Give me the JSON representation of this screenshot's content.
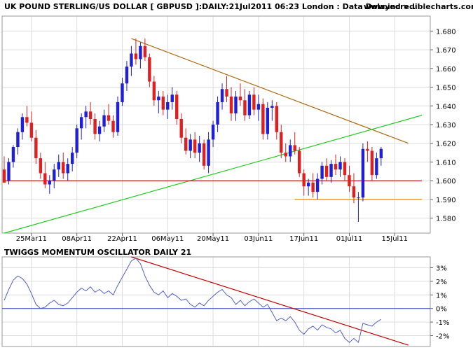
{
  "header": {
    "title": "UK POUND STERLING/US DOLLAR [ GBPUSD ]:DAILY:21Jul2011 06:23 London : Data Delayed >..",
    "site": "www.incrediblecharts.com"
  },
  "colors": {
    "up": "#1f1fd6",
    "down": "#e02020",
    "grid": "#dddddd",
    "frame": "#999999",
    "trend_brown": "#b06a10",
    "trend_green": "#22cc22",
    "support_red": "#d00000",
    "support_orange": "#e08a00",
    "oscillator": "#4f5fd0",
    "osc_trend": "#c00000",
    "zero_line": "#3040c0"
  },
  "chart_data": [
    {
      "type": "candlestick",
      "title": "UK POUND STERLING/US DOLLAR [ GBPUSD ]:DAILY:21Jul2011 06:23 London : Data Delayed >..",
      "ylim": [
        1.572,
        1.688
      ],
      "yticks": [
        "1.580",
        "1.590",
        "1.600",
        "1.610",
        "1.620",
        "1.630",
        "1.640",
        "1.650",
        "1.660",
        "1.670",
        "1.680"
      ],
      "xticks": [
        "25Mar11",
        "08Apr11",
        "22Apr11",
        "06May11",
        "20May11",
        "03Jun11",
        "17Jun11",
        "01Jul11",
        "15Jul11"
      ],
      "xtick_bar_index": [
        6,
        16,
        26,
        36,
        46,
        56,
        66,
        76,
        86
      ],
      "candles": [
        [
          1.606,
          1.613,
          1.6,
          1.599
        ],
        [
          1.6,
          1.612,
          1.598,
          1.61
        ],
        [
          1.61,
          1.619,
          1.607,
          1.618
        ],
        [
          1.618,
          1.628,
          1.614,
          1.626
        ],
        [
          1.626,
          1.636,
          1.622,
          1.634
        ],
        [
          1.634,
          1.64,
          1.629,
          1.631
        ],
        [
          1.631,
          1.637,
          1.621,
          1.623
        ],
        [
          1.623,
          1.627,
          1.609,
          1.612
        ],
        [
          1.612,
          1.615,
          1.601,
          1.604
        ],
        [
          1.604,
          1.61,
          1.596,
          1.598
        ],
        [
          1.598,
          1.603,
          1.593,
          1.6
        ],
        [
          1.6,
          1.609,
          1.596,
          1.606
        ],
        [
          1.606,
          1.614,
          1.602,
          1.61
        ],
        [
          1.61,
          1.615,
          1.601,
          1.604
        ],
        [
          1.604,
          1.612,
          1.6,
          1.609
        ],
        [
          1.609,
          1.618,
          1.605,
          1.615
        ],
        [
          1.615,
          1.63,
          1.612,
          1.628
        ],
        [
          1.628,
          1.636,
          1.622,
          1.634
        ],
        [
          1.634,
          1.64,
          1.628,
          1.637
        ],
        [
          1.637,
          1.642,
          1.63,
          1.633
        ],
        [
          1.633,
          1.636,
          1.622,
          1.625
        ],
        [
          1.625,
          1.632,
          1.621,
          1.629
        ],
        [
          1.629,
          1.638,
          1.626,
          1.635
        ],
        [
          1.635,
          1.641,
          1.63,
          1.632
        ],
        [
          1.632,
          1.635,
          1.623,
          1.626
        ],
        [
          1.626,
          1.645,
          1.624,
          1.642
        ],
        [
          1.642,
          1.655,
          1.64,
          1.652
        ],
        [
          1.652,
          1.664,
          1.648,
          1.661
        ],
        [
          1.661,
          1.672,
          1.656,
          1.668
        ],
        [
          1.668,
          1.676,
          1.662,
          1.665
        ],
        [
          1.665,
          1.674,
          1.66,
          1.672
        ],
        [
          1.672,
          1.676,
          1.664,
          1.666
        ],
        [
          1.666,
          1.668,
          1.65,
          1.653
        ],
        [
          1.653,
          1.656,
          1.64,
          1.643
        ],
        [
          1.643,
          1.648,
          1.636,
          1.645
        ],
        [
          1.645,
          1.648,
          1.635,
          1.638
        ],
        [
          1.638,
          1.646,
          1.633,
          1.642
        ],
        [
          1.642,
          1.65,
          1.638,
          1.646
        ],
        [
          1.646,
          1.648,
          1.63,
          1.633
        ],
        [
          1.633,
          1.636,
          1.62,
          1.623
        ],
        [
          1.623,
          1.628,
          1.614,
          1.616
        ],
        [
          1.616,
          1.625,
          1.612,
          1.622
        ],
        [
          1.622,
          1.626,
          1.612,
          1.615
        ],
        [
          1.615,
          1.624,
          1.61,
          1.62
        ],
        [
          1.62,
          1.622,
          1.606,
          1.608
        ],
        [
          1.608,
          1.626,
          1.604,
          1.622
        ],
        [
          1.622,
          1.632,
          1.618,
          1.63
        ],
        [
          1.63,
          1.645,
          1.626,
          1.642
        ],
        [
          1.642,
          1.652,
          1.638,
          1.649
        ],
        [
          1.649,
          1.656,
          1.642,
          1.645
        ],
        [
          1.645,
          1.65,
          1.632,
          1.636
        ],
        [
          1.636,
          1.648,
          1.632,
          1.645
        ],
        [
          1.645,
          1.652,
          1.64,
          1.643
        ],
        [
          1.643,
          1.649,
          1.632,
          1.635
        ],
        [
          1.635,
          1.648,
          1.633,
          1.646
        ],
        [
          1.646,
          1.65,
          1.635,
          1.638
        ],
        [
          1.638,
          1.646,
          1.632,
          1.641
        ],
        [
          1.641,
          1.644,
          1.622,
          1.625
        ],
        [
          1.625,
          1.642,
          1.622,
          1.639
        ],
        [
          1.639,
          1.643,
          1.632,
          1.64
        ],
        [
          1.64,
          1.642,
          1.622,
          1.626
        ],
        [
          1.626,
          1.63,
          1.612,
          1.615
        ],
        [
          1.615,
          1.62,
          1.61,
          1.613
        ],
        [
          1.613,
          1.622,
          1.61,
          1.619
        ],
        [
          1.619,
          1.626,
          1.614,
          1.616
        ],
        [
          1.616,
          1.618,
          1.602,
          1.604
        ],
        [
          1.604,
          1.606,
          1.592,
          1.597
        ],
        [
          1.597,
          1.601,
          1.592,
          1.599
        ],
        [
          1.599,
          1.604,
          1.591,
          1.594
        ],
        [
          1.594,
          1.604,
          1.59,
          1.601
        ],
        [
          1.601,
          1.61,
          1.598,
          1.608
        ],
        [
          1.608,
          1.612,
          1.6,
          1.602
        ],
        [
          1.602,
          1.611,
          1.599,
          1.609
        ],
        [
          1.609,
          1.614,
          1.603,
          1.606
        ],
        [
          1.606,
          1.613,
          1.602,
          1.61
        ],
        [
          1.61,
          1.612,
          1.6,
          1.603
        ],
        [
          1.603,
          1.608,
          1.594,
          1.597
        ],
        [
          1.597,
          1.604,
          1.588,
          1.591
        ],
        [
          1.591,
          1.594,
          1.578,
          1.591
        ],
        [
          1.591,
          1.62,
          1.589,
          1.617
        ],
        [
          1.617,
          1.621,
          1.61,
          1.616
        ],
        [
          1.616,
          1.618,
          1.6,
          1.603
        ],
        [
          1.603,
          1.615,
          1.601,
          1.612
        ],
        [
          1.612,
          1.618,
          1.608,
          1.617
        ]
      ],
      "lines": [
        {
          "name": "",
          "color": "brown",
          "points": [
            [
              28,
              1.676
            ],
            [
              89,
              1.62
            ]
          ]
        },
        {
          "name": "",
          "color": "green",
          "points": [
            [
              0,
              1.572
            ],
            [
              92,
              1.635
            ]
          ]
        },
        {
          "name": "",
          "color": "red",
          "points": [
            [
              0,
              1.6
            ],
            [
              92,
              1.6
            ]
          ]
        },
        {
          "name": "",
          "color": "orange",
          "points": [
            [
              64,
              1.59
            ],
            [
              92,
              1.59
            ]
          ]
        }
      ]
    },
    {
      "type": "line",
      "title": "TWIGGS MOMENTUM OSCILLATOR DAILY 21",
      "ylim": [
        -2.8,
        3.8
      ],
      "yticks": [
        "3%",
        "2%",
        "1%",
        "0%",
        "-1%",
        "-2%"
      ],
      "ytick_values": [
        3,
        2,
        1,
        0,
        -1,
        -2
      ],
      "series": [
        {
          "name": "",
          "values": [
            0.6,
            1.4,
            2.1,
            2.4,
            2.2,
            1.8,
            1.1,
            0.3,
            0.0,
            0.1,
            0.4,
            0.6,
            0.3,
            0.2,
            0.4,
            0.8,
            1.2,
            1.5,
            1.3,
            1.6,
            1.2,
            1.4,
            1.1,
            1.3,
            1.0,
            1.7,
            2.3,
            2.9,
            3.5,
            3.7,
            3.3,
            2.4,
            1.7,
            1.2,
            1.0,
            1.3,
            0.8,
            1.1,
            0.9,
            0.6,
            0.7,
            0.3,
            0.1,
            0.4,
            0.2,
            0.6,
            0.9,
            1.2,
            1.4,
            1.0,
            0.8,
            0.3,
            0.6,
            0.2,
            0.5,
            0.7,
            0.4,
            0.1,
            0.3,
            -0.3,
            -0.9,
            -0.7,
            -0.9,
            -0.6,
            -1.0,
            -1.6,
            -1.9,
            -1.5,
            -1.3,
            -1.6,
            -1.2,
            -1.4,
            -1.5,
            -1.8,
            -1.6,
            -2.2,
            -2.5,
            -2.2,
            -2.5,
            -1.1,
            -1.2,
            -1.3,
            -1.0,
            -0.8
          ]
        }
      ],
      "lines": [
        {
          "name": "",
          "color": "red",
          "points": [
            [
              28,
              3.8
            ],
            [
              89,
              -2.7
            ]
          ]
        }
      ]
    }
  ]
}
